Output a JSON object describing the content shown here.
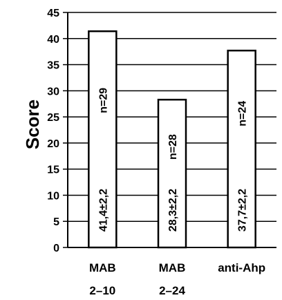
{
  "chart_data": {
    "type": "bar",
    "title": "",
    "xlabel": "",
    "ylabel": "Score",
    "ylim": [
      0,
      45
    ],
    "yticks": [
      0,
      5,
      10,
      15,
      20,
      25,
      30,
      35,
      40,
      45
    ],
    "grid": true,
    "categories": [
      {
        "line1": "MAB",
        "line2": "2–10"
      },
      {
        "line1": "MAB",
        "line2": "2–24"
      },
      {
        "line1": "anti-Ahp",
        "line2": ""
      }
    ],
    "values": [
      41.4,
      28.3,
      37.7
    ],
    "bar_labels": [
      "41,4±2,2",
      "28,3±2,2",
      "37,7±2,2"
    ],
    "n_labels": [
      "n=29",
      "n=28",
      "n=24"
    ],
    "colors": {
      "bar_fill": "#ffffff",
      "bar_stroke": "#000000",
      "grid": "#000000"
    }
  }
}
